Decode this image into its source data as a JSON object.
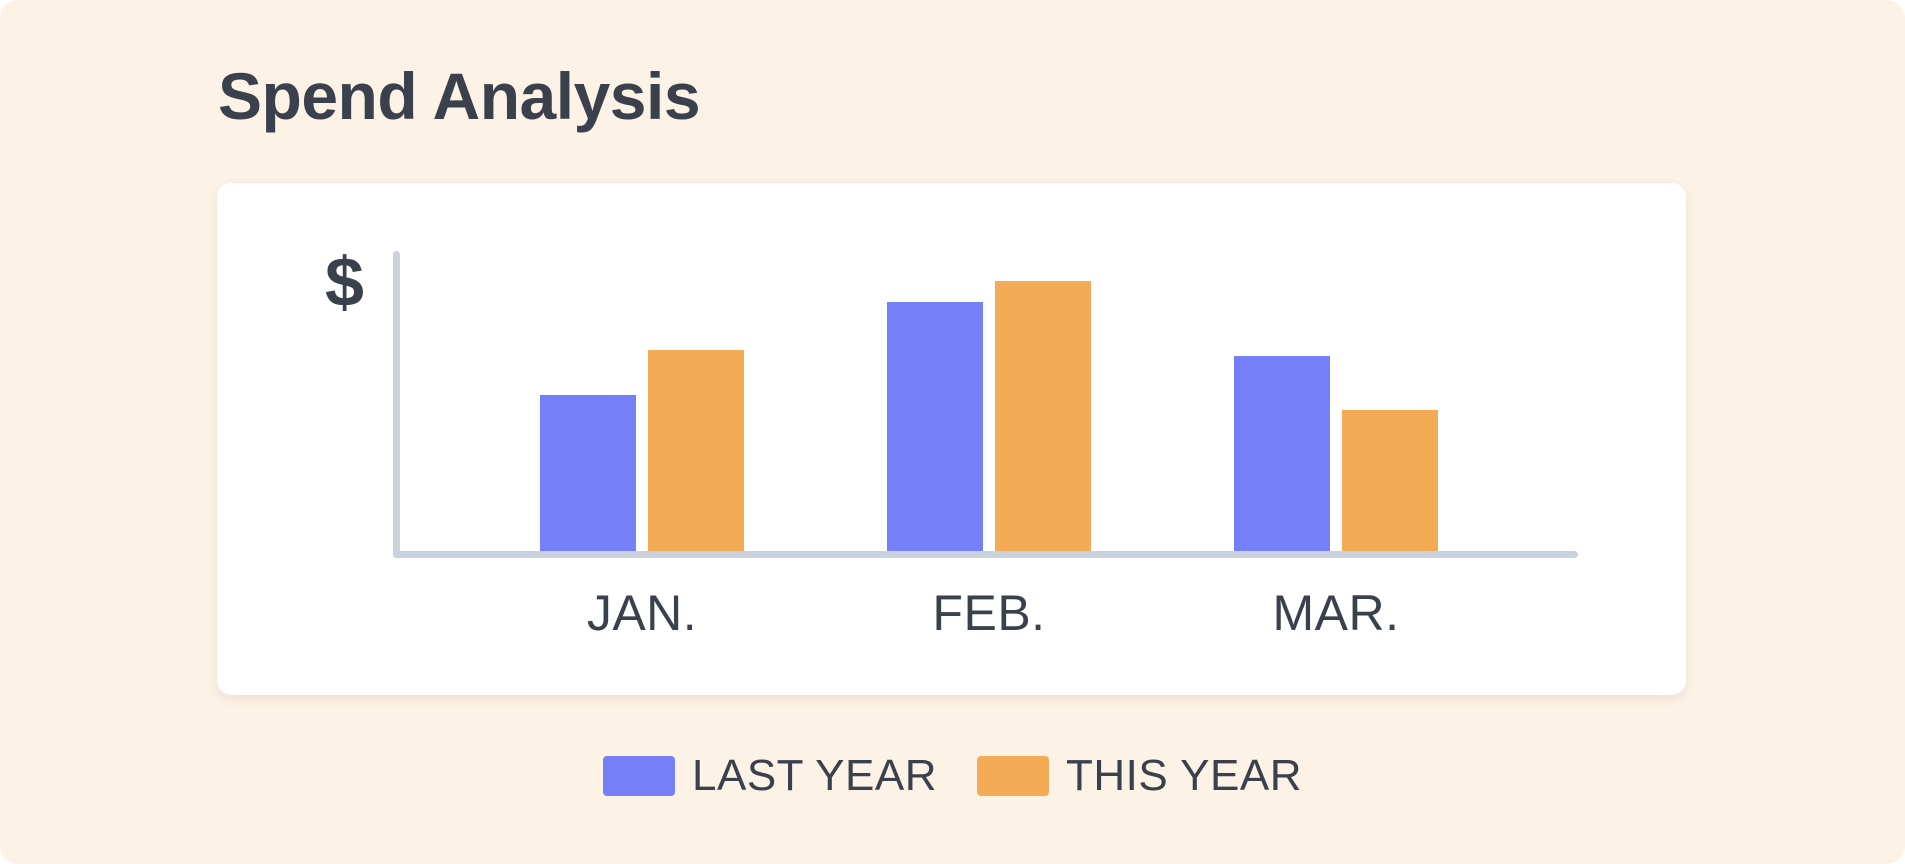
{
  "header": {
    "title": "Spend Analysis"
  },
  "chart_data": {
    "type": "bar",
    "title": "Spend Analysis",
    "categories": [
      "JAN.",
      "FEB.",
      "MAR."
    ],
    "series": [
      {
        "name": "LAST YEAR",
        "color": "#7580F8",
        "values": [
          52,
          83,
          65
        ]
      },
      {
        "name": "THIS YEAR",
        "color": "#F4AB55",
        "values": [
          67,
          90,
          47
        ]
      }
    ],
    "xlabel": "",
    "ylabel": "$",
    "ylim": [
      0,
      100
    ],
    "y_tick_labels": [],
    "grid": false,
    "legend_position": "bottom"
  },
  "colors": {
    "background": "#FCF2E5",
    "card": "#FFFFFF",
    "text": "#3A414C",
    "axis": "#CAD3DD",
    "last_year": "#7580F8",
    "this_year": "#F4AB55"
  }
}
